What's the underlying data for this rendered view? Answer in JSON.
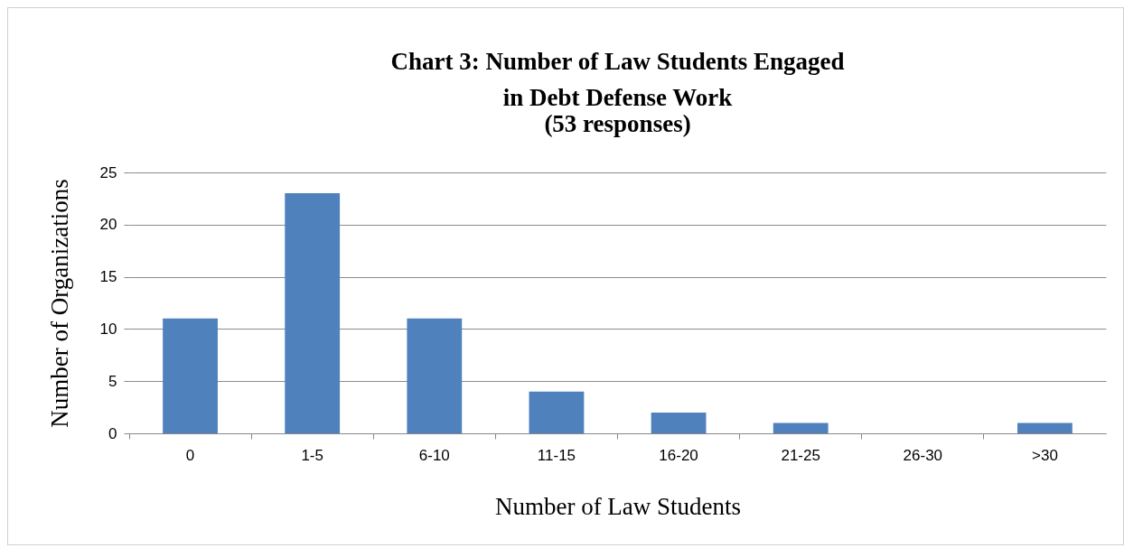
{
  "chart_data": {
    "type": "bar",
    "title": "Chart 3: Number of Law Students Engaged in Debt Defense Work",
    "subtitle": "(53 responses)",
    "xlabel": "Number of Law Students",
    "ylabel": "Number of Organizations",
    "categories": [
      "0",
      "1-5",
      "6-10",
      "11-15",
      "16-20",
      "21-25",
      "26-30",
      ">30"
    ],
    "values": [
      11,
      23,
      11,
      4,
      2,
      1,
      0,
      1
    ],
    "color": "#4f81bd",
    "ylim": [
      0,
      25
    ],
    "yticks": [
      0,
      5,
      10,
      15,
      20,
      25
    ],
    "grid": "y"
  }
}
